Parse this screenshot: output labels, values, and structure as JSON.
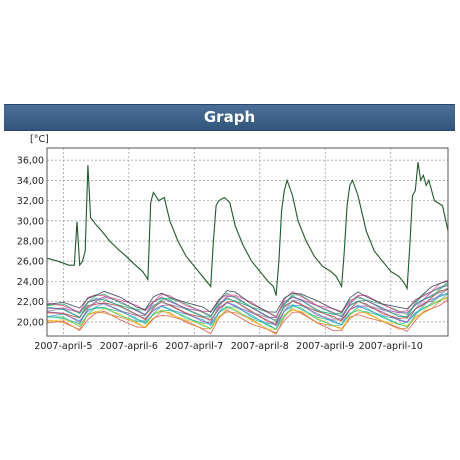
{
  "title": "Graph",
  "chart_data": {
    "type": "line",
    "title": "Graph",
    "ylabel": "[°C]",
    "xlabel": "",
    "ylim": [
      18.6,
      37.2
    ],
    "xlim": [
      "2007-04-04T18:00",
      "2007-04-10T21:00"
    ],
    "y_ticks": [
      "20,00",
      "22,00",
      "24,00",
      "26,00",
      "28,00",
      "30,00",
      "32,00",
      "34,00",
      "36,00"
    ],
    "x_ticks": [
      "2007-april-5",
      "2007-april-6",
      "2007-april-7",
      "2007-april-8",
      "2007-april-9",
      "2007-april-10"
    ],
    "grid": true,
    "legend": "none",
    "series": [
      {
        "color": "#1f5a2a",
        "x": [
          "2007-04-04T18:00",
          "2007-04-04T22:00",
          "2007-04-05T02:00",
          "2007-04-05T04:00",
          "2007-04-05T05:00",
          "2007-04-05T06:00",
          "2007-04-05T07:00",
          "2007-04-05T08:00",
          "2007-04-05T09:00",
          "2007-04-05T10:00",
          "2007-04-05T12:00",
          "2007-04-05T14:00",
          "2007-04-05T17:00",
          "2007-04-05T20:00",
          "2007-04-05T23:00",
          "2007-04-06T02:00",
          "2007-04-06T05:00",
          "2007-04-06T07:00",
          "2007-04-06T08:00",
          "2007-04-06T09:00",
          "2007-04-06T11:00",
          "2007-04-06T13:00",
          "2007-04-06T15:00",
          "2007-04-06T18:00",
          "2007-04-06T21:00",
          "2007-04-07T00:00",
          "2007-04-07T03:00",
          "2007-04-07T06:00",
          "2007-04-07T07:00",
          "2007-04-07T08:00",
          "2007-04-07T09:00",
          "2007-04-07T11:00",
          "2007-04-07T13:00",
          "2007-04-07T15:00",
          "2007-04-07T18:00",
          "2007-04-07T21:00",
          "2007-04-08T00:00",
          "2007-04-08T03:00",
          "2007-04-08T05:00",
          "2007-04-08T06:00",
          "2007-04-08T07:00",
          "2007-04-08T08:00",
          "2007-04-08T09:00",
          "2007-04-08T10:00",
          "2007-04-08T12:00",
          "2007-04-08T14:00",
          "2007-04-08T17:00",
          "2007-04-08T20:00",
          "2007-04-08T23:00",
          "2007-04-09T02:00",
          "2007-04-09T04:00",
          "2007-04-09T06:00",
          "2007-04-09T07:00",
          "2007-04-09T08:00",
          "2007-04-09T09:00",
          "2007-04-09T10:00",
          "2007-04-09T12:00",
          "2007-04-09T15:00",
          "2007-04-09T18:00",
          "2007-04-09T21:00",
          "2007-04-10T00:00",
          "2007-04-10T03:00",
          "2007-04-10T05:00",
          "2007-04-10T06:00",
          "2007-04-10T07:00",
          "2007-04-10T08:00",
          "2007-04-10T09:00",
          "2007-04-10T10:00",
          "2007-04-10T11:00",
          "2007-04-10T12:00",
          "2007-04-10T13:00",
          "2007-04-10T14:00",
          "2007-04-10T16:00",
          "2007-04-10T19:00",
          "2007-04-10T21:00"
        ],
        "y": [
          26.3,
          26.0,
          25.6,
          25.6,
          29.9,
          25.6,
          26.0,
          27.0,
          35.5,
          30.3,
          29.6,
          29.0,
          28.0,
          27.2,
          26.5,
          25.7,
          25.0,
          24.2,
          31.8,
          32.8,
          32.0,
          32.3,
          30.0,
          28.0,
          26.5,
          25.5,
          24.5,
          23.5,
          28.0,
          31.5,
          32.0,
          32.3,
          31.8,
          29.5,
          27.5,
          26.0,
          25.0,
          24.0,
          23.5,
          22.6,
          26.0,
          31.0,
          33.0,
          34.0,
          32.5,
          30.0,
          28.0,
          26.5,
          25.5,
          25.0,
          24.5,
          23.5,
          27.0,
          31.5,
          33.5,
          34.0,
          32.5,
          29.0,
          27.0,
          26.0,
          25.0,
          24.5,
          23.8,
          23.3,
          27.5,
          32.5,
          33.0,
          35.8,
          34.0,
          34.5,
          33.5,
          34.0,
          32.0,
          31.5,
          29.0
        ]
      }
    ],
    "band": {
      "note": "many overlapping multicolored sensor traces",
      "colors": [
        "#d9534f",
        "#e67e22",
        "#f1c40f",
        "#2ecc71",
        "#1abc9c",
        "#3498db",
        "#9b59b6",
        "#c0392b",
        "#7f8c8d",
        "#16a085",
        "#8e44ad",
        "#27ae60",
        "#e84393",
        "#2c3e50"
      ],
      "x": [
        "2007-04-04T18:00",
        "2007-04-05T00:00",
        "2007-04-05T06:00",
        "2007-04-05T09:00",
        "2007-04-05T12:00",
        "2007-04-05T15:00",
        "2007-04-05T21:00",
        "2007-04-06T03:00",
        "2007-04-06T06:00",
        "2007-04-06T09:00",
        "2007-04-06T12:00",
        "2007-04-06T15:00",
        "2007-04-06T21:00",
        "2007-04-07T03:00",
        "2007-04-07T06:00",
        "2007-04-07T09:00",
        "2007-04-07T12:00",
        "2007-04-07T15:00",
        "2007-04-07T21:00",
        "2007-04-08T03:00",
        "2007-04-08T06:00",
        "2007-04-08T09:00",
        "2007-04-08T12:00",
        "2007-04-08T15:00",
        "2007-04-08T21:00",
        "2007-04-09T03:00",
        "2007-04-09T06:00",
        "2007-04-09T09:00",
        "2007-04-09T12:00",
        "2007-04-09T15:00",
        "2007-04-09T21:00",
        "2007-04-10T03:00",
        "2007-04-10T06:00",
        "2007-04-10T09:00",
        "2007-04-10T12:00",
        "2007-04-10T15:00",
        "2007-04-10T18:00",
        "2007-04-10T21:00"
      ],
      "center": [
        20.9,
        20.9,
        20.2,
        21.4,
        21.8,
        21.9,
        21.3,
        20.6,
        20.3,
        21.3,
        21.8,
        21.6,
        20.9,
        20.3,
        20.0,
        21.3,
        22.0,
        21.8,
        20.9,
        20.1,
        19.8,
        21.3,
        22.0,
        21.8,
        20.9,
        20.3,
        20.1,
        21.3,
        21.8,
        21.6,
        20.9,
        20.3,
        20.2,
        21.2,
        21.8,
        22.3,
        22.8,
        23.2
      ],
      "spread": 1.0
    }
  }
}
